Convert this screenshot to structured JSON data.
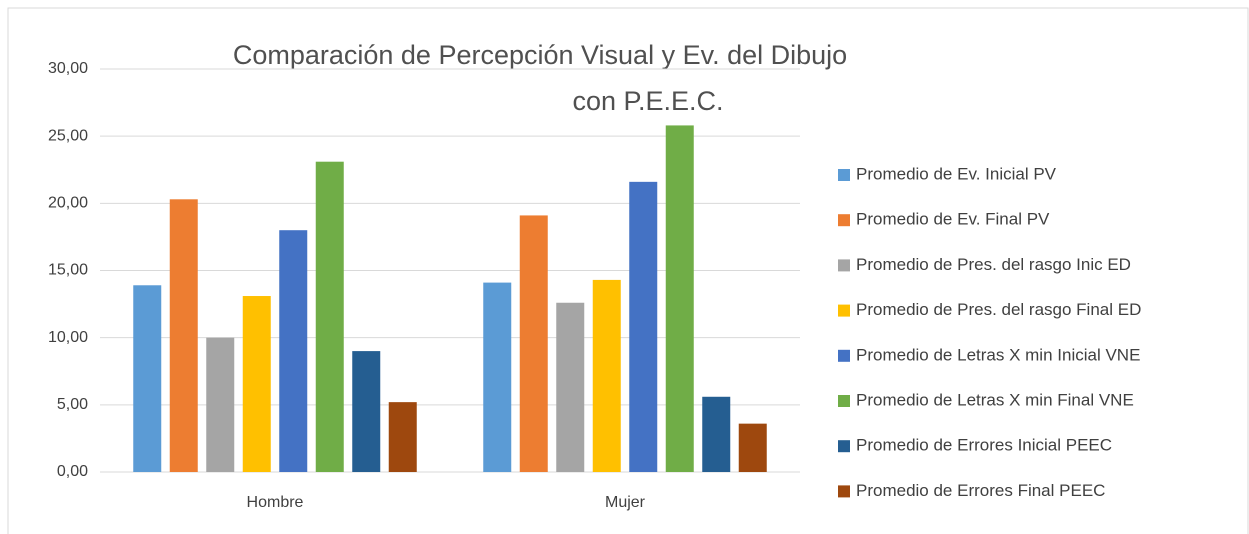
{
  "chart_data": {
    "type": "bar",
    "title_lines": [
      "Comparación de Percepción Visual y Ev. del Dibujo",
      "con P.E.E.C."
    ],
    "categories": [
      "Hombre",
      "Mujer"
    ],
    "series": [
      {
        "name": "Promedio de Ev. Inicial PV",
        "color": "#5b9bd5",
        "values": [
          13.9,
          14.1
        ]
      },
      {
        "name": "Promedio de Ev. Final PV",
        "color": "#ed7d31",
        "values": [
          20.3,
          19.1
        ]
      },
      {
        "name": "Promedio de Pres. del rasgo Inic ED",
        "color": "#a5a5a5",
        "values": [
          10.0,
          12.6
        ]
      },
      {
        "name": "Promedio de Pres. del rasgo Final ED",
        "color": "#ffc000",
        "values": [
          13.1,
          14.3
        ]
      },
      {
        "name": "Promedio de Letras X min Inicial VNE",
        "color": "#4472c4",
        "values": [
          18.0,
          21.6
        ]
      },
      {
        "name": "Promedio de Letras X min Final VNE",
        "color": "#70ad47",
        "values": [
          23.1,
          25.8
        ]
      },
      {
        "name": "Promedio de Errores Inicial PEEC",
        "color": "#255e91",
        "values": [
          9.0,
          5.6
        ]
      },
      {
        "name": "Promedio de Errores Final PEEC",
        "color": "#9e480e",
        "values": [
          5.2,
          3.6
        ]
      }
    ],
    "ylim": [
      0,
      30
    ],
    "yticks": [
      {
        "value": 0,
        "label": "0,00"
      },
      {
        "value": 5,
        "label": "5,00"
      },
      {
        "value": 10,
        "label": "10,00"
      },
      {
        "value": 15,
        "label": "15,00"
      },
      {
        "value": 20,
        "label": "20,00"
      },
      {
        "value": 25,
        "label": "25,00"
      },
      {
        "value": 30,
        "label": "30,00"
      }
    ],
    "grid": true,
    "legend": "right"
  }
}
